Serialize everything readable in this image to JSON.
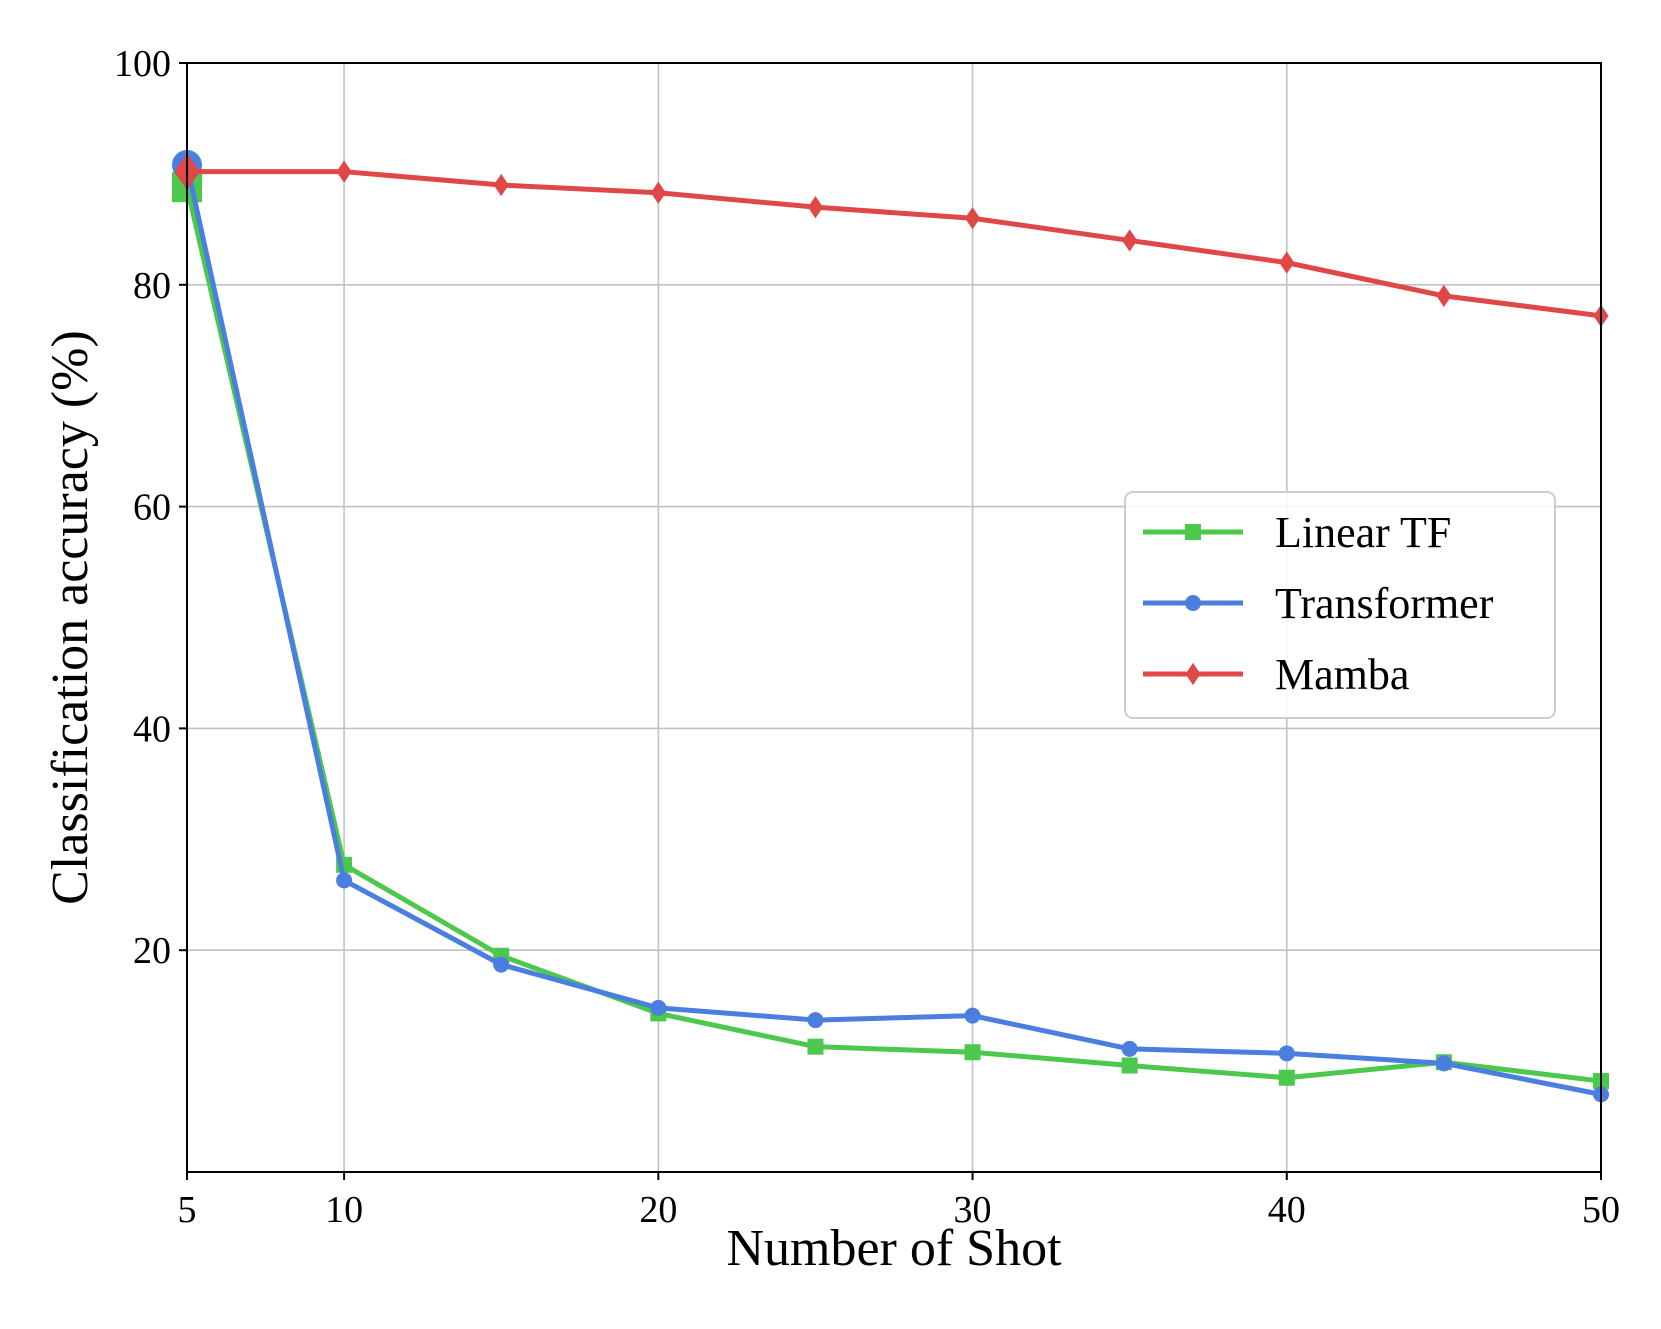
{
  "chart_data": {
    "type": "line",
    "title": "",
    "xlabel": "Number of Shot",
    "ylabel": "Classification accuracy (%)",
    "xlim": [
      5,
      50
    ],
    "ylim": [
      0,
      100
    ],
    "xticks": [
      5,
      10,
      20,
      30,
      40,
      50
    ],
    "yticks": [
      20,
      40,
      60,
      80,
      100
    ],
    "grid": true,
    "legend_position": "center-right",
    "x": [
      5,
      10,
      15,
      20,
      25,
      30,
      35,
      40,
      45,
      50
    ],
    "series": [
      {
        "name": "Linear TF",
        "color": "#4cc84c",
        "marker": "square",
        "values": [
          88.8,
          27.7,
          19.5,
          14.3,
          11.3,
          10.8,
          9.6,
          8.5,
          9.9,
          8.2
        ]
      },
      {
        "name": "Transformer",
        "color": "#4a7fe0",
        "marker": "circle",
        "values": [
          90.8,
          26.3,
          18.7,
          14.8,
          13.7,
          14.1,
          11.1,
          10.7,
          9.8,
          7.0
        ]
      },
      {
        "name": "Mamba",
        "color": "#e04848",
        "marker": "diamond",
        "values": [
          90.2,
          90.2,
          89.0,
          88.3,
          87.0,
          86.0,
          84.0,
          82.0,
          79.0,
          77.2
        ]
      }
    ]
  }
}
